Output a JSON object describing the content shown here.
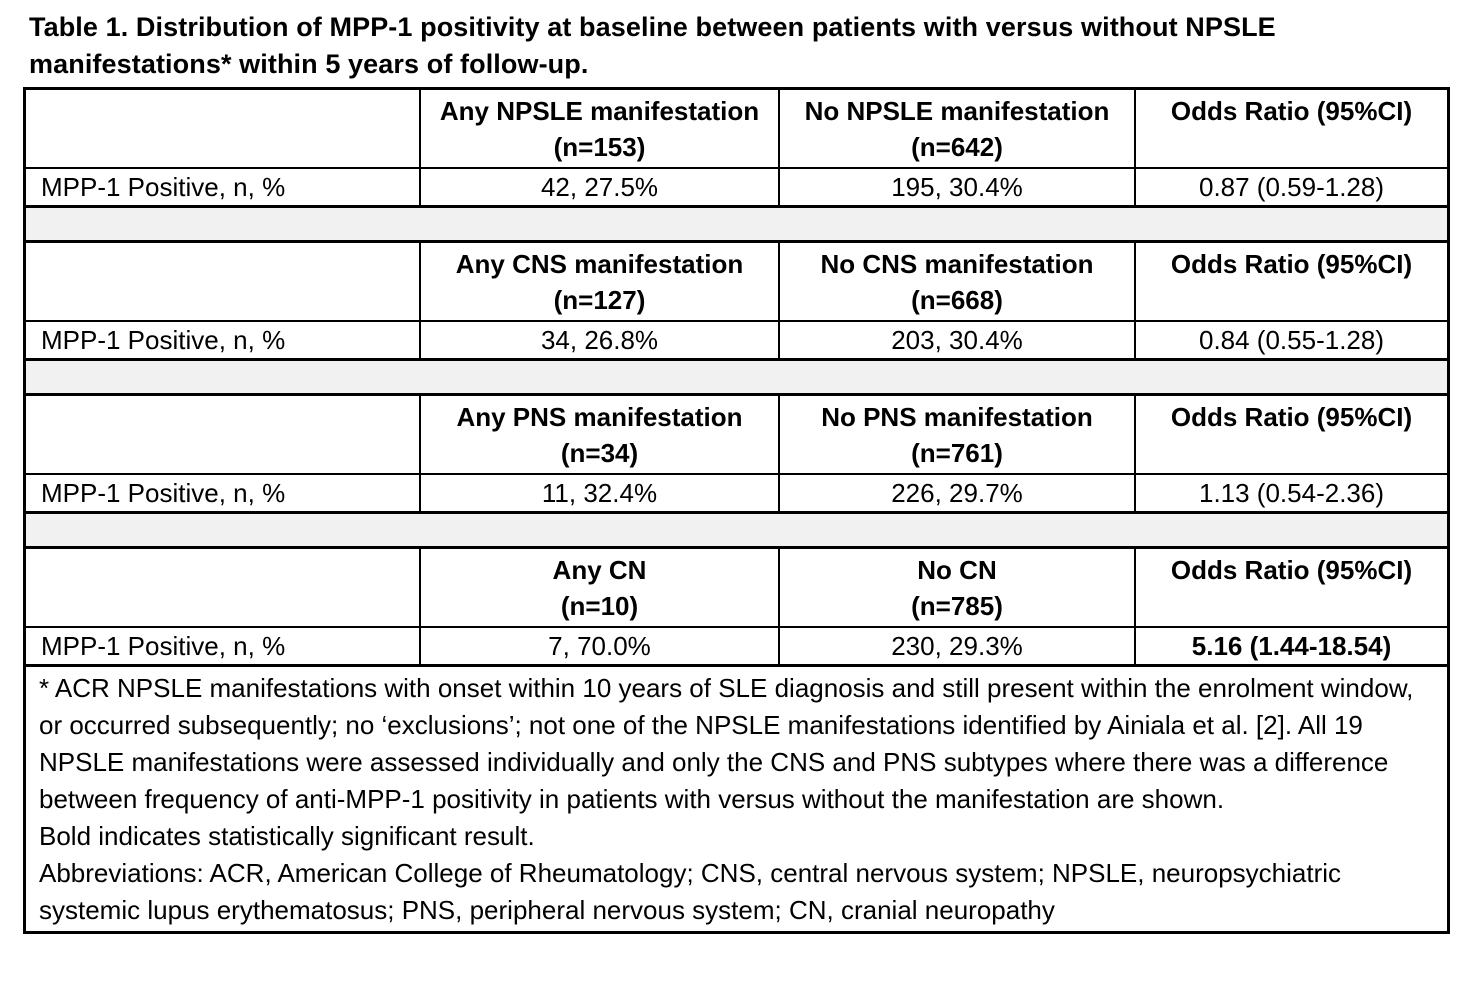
{
  "title": {
    "line1": "Table 1. Distribution of MPP-1 positivity at baseline between patients with versus without NPSLE",
    "line2": "manifestations* within 5 years of follow-up."
  },
  "row_label": "MPP-1 Positive, n, %",
  "sections": [
    {
      "group_header": "Any NPSLE manifestation",
      "group_n": "(n=153)",
      "comparator_header": "No NPSLE manifestation",
      "comparator_n": "(n=642)",
      "or_header": "Odds Ratio (95%CI)",
      "group_value": "42, 27.5%",
      "comparator_value": "195, 30.4%",
      "odds_ratio": "0.87 (0.59-1.28)",
      "odds_ratio_bold": false
    },
    {
      "group_header": "Any CNS manifestation",
      "group_n": "(n=127)",
      "comparator_header": "No CNS manifestation",
      "comparator_n": "(n=668)",
      "or_header": "Odds Ratio (95%CI)",
      "group_value": "34, 26.8%",
      "comparator_value": "203, 30.4%",
      "odds_ratio": "0.84 (0.55-1.28)",
      "odds_ratio_bold": false
    },
    {
      "group_header": "Any PNS manifestation",
      "group_n": "(n=34)",
      "comparator_header": "No PNS manifestation",
      "comparator_n": "(n=761)",
      "or_header": "Odds Ratio (95%CI)",
      "group_value": "11, 32.4%",
      "comparator_value": "226, 29.7%",
      "odds_ratio": "1.13 (0.54-2.36)",
      "odds_ratio_bold": false
    },
    {
      "group_header": "Any CN",
      "group_n": "(n=10)",
      "comparator_header": "No CN",
      "comparator_n": "(n=785)",
      "or_header": "Odds Ratio (95%CI)",
      "group_value": "7, 70.0%",
      "comparator_value": "230, 29.3%",
      "odds_ratio": "5.16 (1.44-18.54)",
      "odds_ratio_bold": true
    }
  ],
  "footnotes": [
    "* ACR NPSLE manifestations with onset within 10 years of SLE diagnosis and still present within the enrolment window, or occurred subsequently; no ‘exclusions’; not one of the NPSLE manifestations identified by Ainiala et al. [2]. All 19 NPSLE manifestations were assessed individually and only the CNS and PNS subtypes where there was a difference between frequency of anti-MPP-1 positivity in patients with versus without the manifestation are shown.",
    "Bold indicates statistically significant result.",
    "Abbreviations: ACR, American College of Rheumatology; CNS, central nervous system; NPSLE, neuropsychiatric systemic lupus erythematosus; PNS, peripheral nervous system; CN, cranial neuropathy"
  ],
  "colors": {
    "background": "#ffffff",
    "text": "#000000",
    "border": "#000000",
    "spacer_bg": "#f1f1f1"
  }
}
